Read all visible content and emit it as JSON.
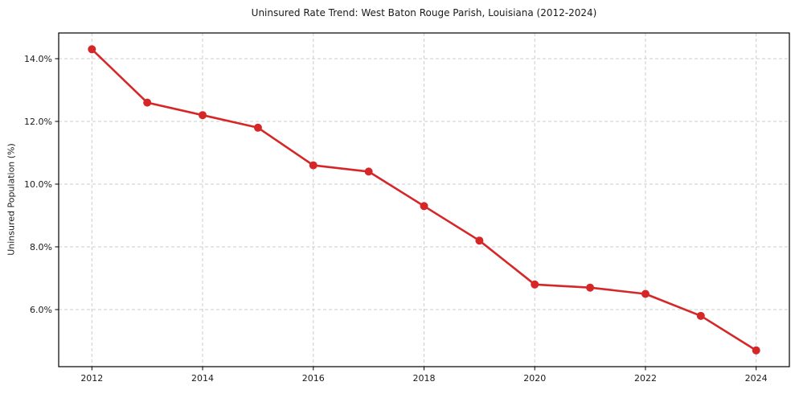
{
  "chart_data": {
    "type": "line",
    "title": "Uninsured Rate Trend: West Baton Rouge Parish, Louisiana (2012-2024)",
    "xlabel": "",
    "ylabel": "Uninsured Population (%)",
    "x": [
      2012,
      2013,
      2014,
      2015,
      2016,
      2017,
      2018,
      2019,
      2020,
      2021,
      2022,
      2023,
      2024
    ],
    "series": [
      {
        "name": "Uninsured rate",
        "values": [
          14.3,
          12.6,
          12.2,
          11.8,
          10.6,
          10.4,
          9.3,
          8.2,
          6.8,
          6.7,
          6.5,
          5.8,
          4.7
        ]
      }
    ],
    "x_tick_values": [
      2012,
      2014,
      2016,
      2018,
      2020,
      2022,
      2024
    ],
    "x_tick_labels": [
      "2012",
      "2014",
      "2016",
      "2018",
      "2020",
      "2022",
      "2024"
    ],
    "y_tick_values": [
      6,
      8,
      10,
      12,
      14
    ],
    "y_tick_labels": [
      "6.0%",
      "8.0%",
      "10.0%",
      "12.0%",
      "14.0%"
    ],
    "xlim": [
      2011.4,
      2024.6
    ],
    "ylim": [
      4.18,
      14.82
    ],
    "grid": true,
    "grid_style": "dashed",
    "legend_position": "none",
    "marker": "circle",
    "colors": {
      "line": "#d62728",
      "marker": "#d62728",
      "grid": "#cccccc",
      "axis": "#000000",
      "text": "#1a1a1a",
      "background": "#ffffff"
    }
  }
}
